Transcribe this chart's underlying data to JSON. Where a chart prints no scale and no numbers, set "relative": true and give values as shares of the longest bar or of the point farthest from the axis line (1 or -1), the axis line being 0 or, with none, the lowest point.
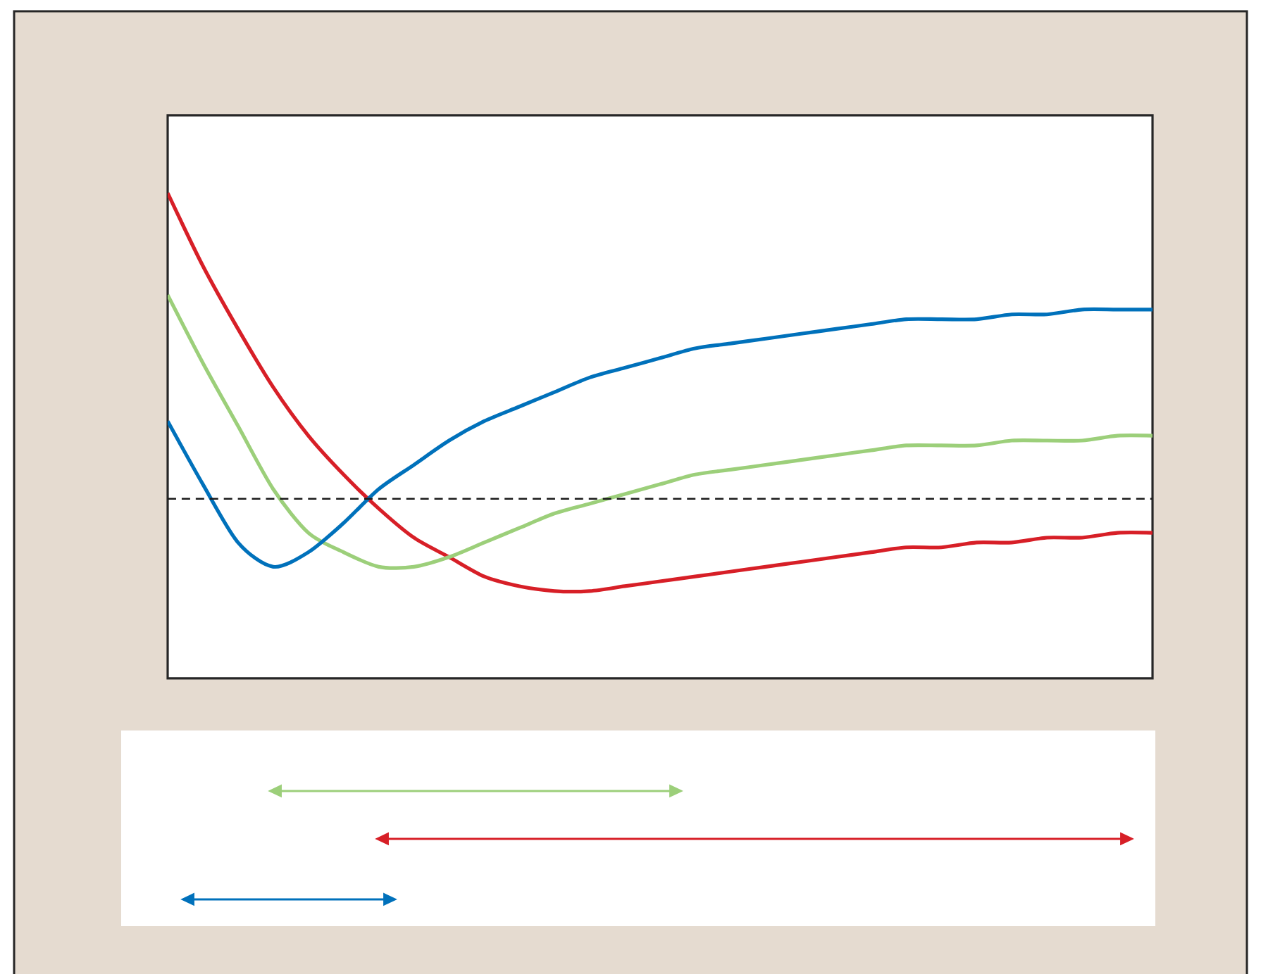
{
  "chart_data": {
    "type": "line",
    "relative": true,
    "tick_labels": false,
    "marker": "none",
    "line_style": "solid",
    "categories": [
      null,
      null,
      null,
      null,
      null,
      null,
      null,
      null,
      null,
      null,
      null,
      null,
      null,
      null,
      null,
      null,
      null,
      null,
      null,
      null,
      null,
      null,
      null,
      null,
      null,
      null,
      null,
      null,
      null
    ],
    "series": [
      {
        "color": "#d71f27",
        "values": [
          1.0,
          0.85,
          0.72,
          0.6,
          0.5,
          0.42,
          0.35,
          0.29,
          0.25,
          0.21,
          0.19,
          0.18,
          0.18,
          0.19,
          0.2,
          0.21,
          0.22,
          0.23,
          0.24,
          0.25,
          0.26,
          0.27,
          0.27,
          0.28,
          0.28,
          0.29,
          0.29,
          0.3,
          0.3
        ]
      },
      {
        "color": "#9ccf7a",
        "values": [
          0.79,
          0.65,
          0.52,
          0.39,
          0.3,
          0.26,
          0.23,
          0.23,
          0.25,
          0.28,
          0.31,
          0.34,
          0.36,
          0.38,
          0.4,
          0.42,
          0.43,
          0.44,
          0.45,
          0.46,
          0.47,
          0.48,
          0.48,
          0.48,
          0.49,
          0.49,
          0.49,
          0.5,
          0.5
        ]
      },
      {
        "color": "#0071bb",
        "values": [
          0.53,
          0.4,
          0.28,
          0.23,
          0.26,
          0.32,
          0.39,
          0.44,
          0.49,
          0.53,
          0.56,
          0.59,
          0.62,
          0.64,
          0.66,
          0.68,
          0.69,
          0.7,
          0.71,
          0.72,
          0.73,
          0.74,
          0.74,
          0.74,
          0.75,
          0.75,
          0.76,
          0.76,
          0.76
        ]
      }
    ],
    "ref_lines": [
      {
        "axis": "y",
        "value": 0.37,
        "color": "#1a1a1a",
        "line_style": "dashed"
      }
    ]
  }
}
